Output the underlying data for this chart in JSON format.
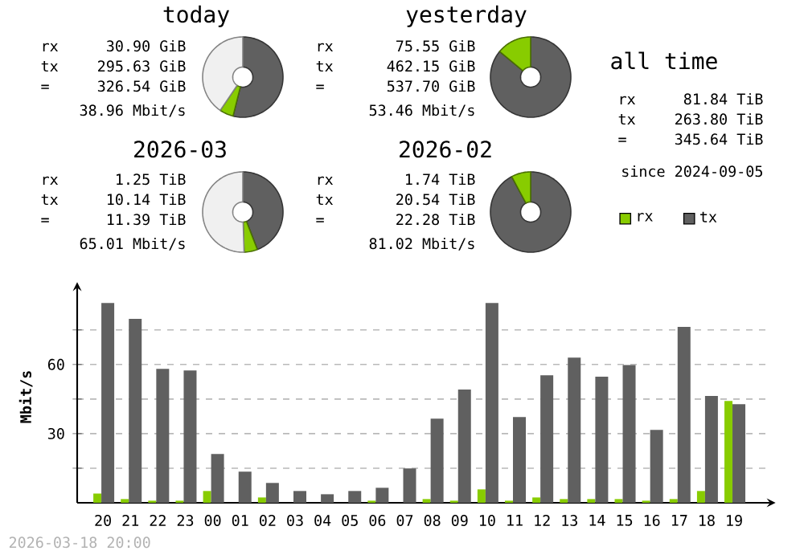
{
  "chart_data": [
    {
      "type": "donut",
      "title": "today",
      "categories": [
        null,
        null,
        null
      ],
      "values": [
        53.9,
        5.6,
        40.5
      ],
      "colors": [
        "#606060",
        "#88cc00",
        "#f0f0f0"
      ],
      "annotations": [
        "rx",
        "30.90 GiB",
        "tx",
        "295.63 GiB",
        "=",
        "326.54 GiB",
        "38.96 Mbit/s"
      ]
    },
    {
      "type": "donut",
      "title": "yesterday",
      "categories": [
        null,
        null
      ],
      "values": [
        86,
        14
      ],
      "colors": [
        "#606060",
        "#88cc00"
      ],
      "annotations": [
        "rx",
        "75.55 GiB",
        "tx",
        "462.15 GiB",
        "=",
        "537.70 GiB",
        "53.46 Mbit/s"
      ]
    },
    {
      "type": "other",
      "title": "all time",
      "annotations": [
        "rx",
        "81.84 TiB",
        "tx",
        "263.80 TiB",
        "=",
        "345.64 TiB",
        "since 2024-09-05"
      ]
    },
    {
      "type": "donut",
      "title": "2026-03",
      "categories": [
        null,
        null,
        null
      ],
      "values": [
        44.1,
        5.4,
        50.5
      ],
      "colors": [
        "#606060",
        "#88cc00",
        "#f0f0f0"
      ],
      "annotations": [
        "rx",
        "1.25 TiB",
        "tx",
        "10.14 TiB",
        "=",
        "11.39 TiB",
        "65.01 Mbit/s"
      ]
    },
    {
      "type": "donut",
      "title": "2026-02",
      "categories": [
        null,
        null
      ],
      "values": [
        92.2,
        7.8
      ],
      "colors": [
        "#606060",
        "#88cc00"
      ],
      "annotations": [
        "rx",
        "1.74 TiB",
        "tx",
        "20.54 TiB",
        "=",
        "22.28 TiB",
        "81.02 Mbit/s"
      ]
    },
    {
      "type": "bar",
      "ylabel": "Mbit/s",
      "ylim": [
        0,
        92
      ],
      "yticks": [
        {
          "value": 15,
          "label": null
        },
        30,
        {
          "value": 45,
          "label": null
        },
        60,
        {
          "value": 75,
          "label": null
        }
      ],
      "grid": "y",
      "legend": "top right",
      "categories": [
        "20",
        "21",
        "22",
        "23",
        "00",
        "01",
        "02",
        "03",
        "04",
        "05",
        "06",
        "07",
        "08",
        "09",
        "10",
        "11",
        "12",
        "13",
        "14",
        "15",
        "16",
        "17",
        "18",
        "19"
      ],
      "series": [
        {
          "name": "rx",
          "color": "#88cc00",
          "values": [
            4.0,
            1.6,
            0.9,
            0.9,
            5.1,
            0,
            2.3,
            0,
            0,
            0,
            0.9,
            0,
            1.6,
            0.9,
            5.8,
            0.9,
            2.3,
            1.6,
            1.6,
            1.6,
            0.9,
            1.6,
            5.1,
            44.2
          ]
        },
        {
          "name": "tx",
          "color": "#606060",
          "values": [
            86.7,
            79.8,
            58.1,
            57.4,
            21.2,
            13.5,
            8.6,
            5.1,
            3.7,
            5.1,
            6.5,
            14.9,
            36.5,
            49.1,
            86.7,
            37.2,
            55.3,
            63.0,
            54.7,
            59.8,
            31.6,
            76.3,
            46.3,
            42.8
          ]
        }
      ],
      "annotations": [
        "2026-03-18 20:00"
      ]
    }
  ]
}
